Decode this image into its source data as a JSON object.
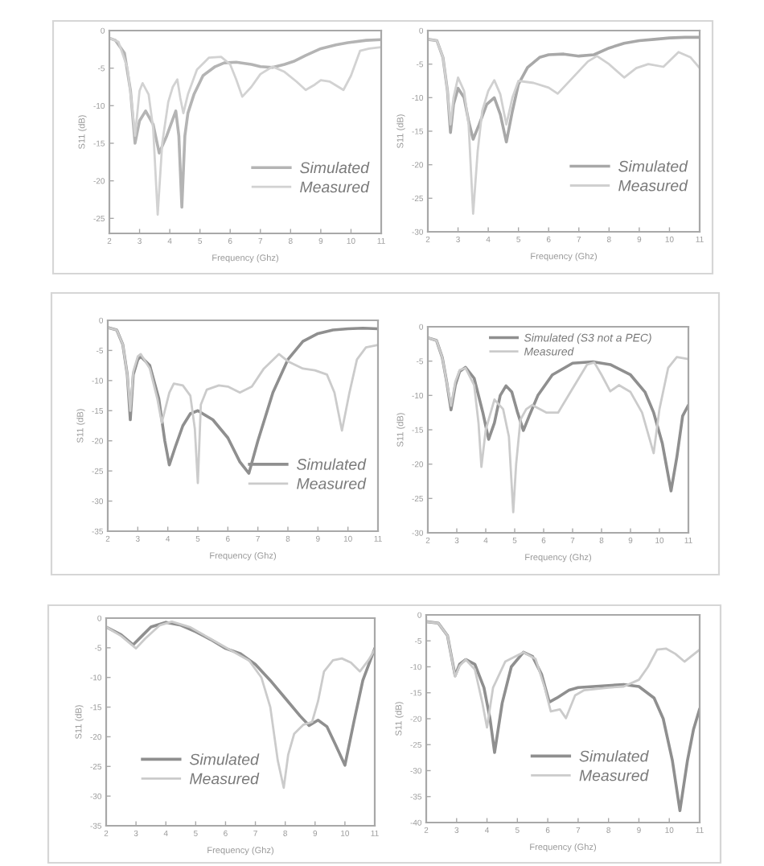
{
  "chart_data": [
    {
      "type": "line",
      "xlabel": "Frequency (Ghz)",
      "ylabel": "S11 (dB)",
      "xlim": [
        2,
        11
      ],
      "xticks": [
        2,
        3,
        4,
        5,
        6,
        7,
        8,
        9,
        10,
        11
      ],
      "ylim": [
        -27,
        0
      ],
      "yticks": [
        0,
        -5,
        -10,
        -15,
        -20,
        -25
      ],
      "legend": "lower right",
      "series": [
        {
          "name": "Simulated",
          "color": "#b4b4b4",
          "x": [
            2.0,
            2.2,
            2.5,
            2.7,
            2.85,
            3.0,
            3.2,
            3.45,
            3.65,
            3.9,
            4.2,
            4.3,
            4.4,
            4.5,
            4.6,
            4.8,
            5.1,
            5.5,
            5.8,
            6.2,
            6.7,
            7.0,
            7.4,
            7.8,
            8.1,
            8.5,
            9.0,
            9.5,
            9.9,
            10.5,
            11.0
          ],
          "values": [
            -1.0,
            -1.3,
            -3.0,
            -8.0,
            -15.0,
            -12.0,
            -10.7,
            -12.5,
            -16.3,
            -14.0,
            -10.7,
            -14.0,
            -23.5,
            -14.0,
            -11.0,
            -8.5,
            -6.0,
            -4.8,
            -4.3,
            -4.2,
            -4.5,
            -4.8,
            -4.9,
            -4.5,
            -4.1,
            -3.3,
            -2.4,
            -1.9,
            -1.6,
            -1.3,
            -1.2
          ]
        },
        {
          "name": "Measured",
          "color": "#d2d2d2",
          "x": [
            2.0,
            2.3,
            2.6,
            2.75,
            2.85,
            3.0,
            3.1,
            3.3,
            3.45,
            3.6,
            3.75,
            3.95,
            4.1,
            4.25,
            4.35,
            4.45,
            4.6,
            4.9,
            5.3,
            5.7,
            6.0,
            6.2,
            6.4,
            6.7,
            7.0,
            7.4,
            7.8,
            8.2,
            8.5,
            8.8,
            9.0,
            9.3,
            9.75,
            10.0,
            10.3,
            10.6,
            11.0
          ],
          "values": [
            -1.0,
            -1.5,
            -5.0,
            -10.0,
            -14.0,
            -8.0,
            -7.0,
            -8.5,
            -13.0,
            -24.5,
            -15.0,
            -9.5,
            -7.5,
            -6.5,
            -9.0,
            -11.0,
            -8.5,
            -5.2,
            -3.6,
            -3.5,
            -4.5,
            -6.5,
            -8.8,
            -7.5,
            -5.8,
            -4.8,
            -5.5,
            -6.8,
            -7.9,
            -7.2,
            -6.6,
            -6.8,
            -7.9,
            -6.0,
            -2.7,
            -2.4,
            -2.2
          ]
        }
      ]
    },
    {
      "type": "line",
      "xlabel": "Frequency (Ghz)",
      "ylabel": "S11 (dB)",
      "xlim": [
        2,
        11
      ],
      "xticks": [
        2,
        3,
        4,
        5,
        6,
        7,
        8,
        9,
        10,
        11
      ],
      "ylim": [
        -30,
        0
      ],
      "yticks": [
        0,
        -5,
        -10,
        -15,
        -20,
        -25,
        -30
      ],
      "legend": "lower right",
      "series": [
        {
          "name": "Simulated",
          "color": "#a8a8a8",
          "x": [
            2.0,
            2.3,
            2.5,
            2.65,
            2.75,
            2.85,
            3.0,
            3.2,
            3.35,
            3.5,
            3.7,
            3.95,
            4.2,
            4.4,
            4.6,
            4.8,
            5.0,
            5.3,
            5.7,
            6.0,
            6.5,
            7.0,
            7.5,
            8.0,
            8.5,
            9.0,
            9.5,
            10.0,
            10.5,
            11.0
          ],
          "values": [
            -1.3,
            -1.5,
            -4.0,
            -9.0,
            -15.2,
            -11.0,
            -8.6,
            -10.0,
            -13.5,
            -16.2,
            -14.0,
            -11.0,
            -10.0,
            -12.5,
            -16.6,
            -12.0,
            -8.0,
            -5.5,
            -4.0,
            -3.6,
            -3.5,
            -3.8,
            -3.6,
            -2.6,
            -1.9,
            -1.5,
            -1.3,
            -1.1,
            -1.0,
            -1.0
          ]
        },
        {
          "name": "Measured",
          "color": "#d0d0d0",
          "x": [
            2.0,
            2.3,
            2.5,
            2.65,
            2.75,
            2.85,
            3.0,
            3.2,
            3.35,
            3.5,
            3.65,
            3.8,
            4.0,
            4.2,
            4.4,
            4.6,
            4.8,
            5.0,
            5.5,
            6.0,
            6.3,
            6.8,
            7.3,
            7.6,
            8.0,
            8.5,
            8.9,
            9.3,
            9.8,
            10.3,
            10.7,
            11.0
          ],
          "values": [
            -1.3,
            -1.5,
            -4.0,
            -9.0,
            -14.0,
            -10.0,
            -7.0,
            -9.0,
            -14.0,
            -27.3,
            -18.0,
            -12.0,
            -9.0,
            -7.4,
            -9.5,
            -14.0,
            -10.0,
            -7.5,
            -7.8,
            -8.5,
            -9.4,
            -7.0,
            -4.6,
            -3.8,
            -5.0,
            -7.0,
            -5.6,
            -5.0,
            -5.4,
            -3.2,
            -4.0,
            -5.6
          ]
        }
      ]
    },
    {
      "type": "line",
      "xlabel": "Frequency (Ghz)",
      "ylabel": "S11 (dB)",
      "xlim": [
        2,
        11
      ],
      "xticks": [
        2,
        3,
        4,
        5,
        6,
        7,
        8,
        9,
        10,
        11
      ],
      "ylim": [
        -35,
        0
      ],
      "yticks": [
        0,
        -5,
        -10,
        -15,
        -20,
        -25,
        -30,
        -35
      ],
      "legend": "lower right",
      "series": [
        {
          "name": "Simulated",
          "color": "#8f8f8f",
          "x": [
            2.0,
            2.3,
            2.5,
            2.65,
            2.75,
            2.85,
            3.0,
            3.1,
            3.4,
            3.7,
            3.9,
            4.05,
            4.25,
            4.5,
            4.75,
            5.0,
            5.5,
            6.0,
            6.4,
            6.7,
            7.0,
            7.5,
            8.0,
            8.5,
            9.0,
            9.5,
            10.0,
            10.5,
            11.0
          ],
          "values": [
            -1.2,
            -1.6,
            -4.0,
            -9.0,
            -16.5,
            -9.0,
            -6.5,
            -6.0,
            -7.5,
            -13.0,
            -20.0,
            -24.0,
            -21.0,
            -17.5,
            -15.5,
            -15.0,
            -16.5,
            -19.5,
            -23.5,
            -25.4,
            -20.0,
            -12.0,
            -6.5,
            -3.5,
            -2.2,
            -1.6,
            -1.4,
            -1.3,
            -1.4
          ]
        },
        {
          "name": "Measured",
          "color": "#cbcbcb",
          "x": [
            2.0,
            2.3,
            2.5,
            2.65,
            2.75,
            2.85,
            3.0,
            3.1,
            3.4,
            3.65,
            3.8,
            3.9,
            4.05,
            4.2,
            4.5,
            4.75,
            4.9,
            5.0,
            5.1,
            5.3,
            5.7,
            6.0,
            6.4,
            6.8,
            7.2,
            7.7,
            8.0,
            8.5,
            8.9,
            9.3,
            9.55,
            9.8,
            10.05,
            10.3,
            10.6,
            11.0
          ],
          "values": [
            -1.2,
            -1.6,
            -4.0,
            -9.0,
            -15.0,
            -8.5,
            -6.0,
            -5.6,
            -8.0,
            -13.0,
            -17.0,
            -15.0,
            -12.0,
            -10.5,
            -10.8,
            -12.5,
            -18.0,
            -27.0,
            -14.0,
            -11.5,
            -10.8,
            -11.0,
            -12.0,
            -11.0,
            -8.0,
            -5.6,
            -6.8,
            -8.0,
            -8.3,
            -9.0,
            -12.0,
            -18.3,
            -12.0,
            -6.5,
            -4.5,
            -4.1
          ]
        }
      ]
    },
    {
      "type": "line",
      "xlabel": "Frequency (Ghz)",
      "ylabel": "S11 (dB)",
      "xlim": [
        2,
        11
      ],
      "xticks": [
        2,
        3,
        4,
        5,
        6,
        7,
        8,
        9,
        10,
        11
      ],
      "ylim": [
        -30,
        0
      ],
      "yticks": [
        0,
        -5,
        -10,
        -15,
        -20,
        -25,
        -30
      ],
      "legend": "top",
      "series": [
        {
          "name": "Simulated (S3 not a PEC)",
          "color": "#8f8f8f",
          "x": [
            2.0,
            2.3,
            2.5,
            2.65,
            2.8,
            2.95,
            3.1,
            3.3,
            3.6,
            3.9,
            4.1,
            4.3,
            4.5,
            4.7,
            4.9,
            5.1,
            5.3,
            5.5,
            5.8,
            6.3,
            7.0,
            7.7,
            8.3,
            9.0,
            9.5,
            9.8,
            10.1,
            10.4,
            10.6,
            10.8,
            11.0
          ],
          "values": [
            -1.6,
            -2.0,
            -4.5,
            -8.0,
            -12.1,
            -8.5,
            -6.5,
            -5.9,
            -7.5,
            -12.5,
            -16.4,
            -14.0,
            -10.0,
            -8.6,
            -9.5,
            -12.5,
            -15.1,
            -13.0,
            -10.0,
            -7.0,
            -5.3,
            -5.1,
            -5.5,
            -7.0,
            -9.5,
            -12.5,
            -17.0,
            -23.9,
            -19.0,
            -13.0,
            -11.4
          ]
        },
        {
          "name": "Measured",
          "color": "#cbcbcb",
          "x": [
            2.0,
            2.3,
            2.5,
            2.65,
            2.8,
            2.95,
            3.1,
            3.3,
            3.6,
            3.75,
            3.85,
            4.0,
            4.3,
            4.6,
            4.8,
            4.95,
            5.05,
            5.2,
            5.4,
            5.6,
            6.1,
            6.5,
            7.0,
            7.5,
            7.75,
            8.0,
            8.3,
            8.6,
            9.0,
            9.4,
            9.8,
            10.0,
            10.3,
            10.6,
            11.0
          ],
          "values": [
            -1.6,
            -2.0,
            -4.5,
            -8.0,
            -11.5,
            -8.0,
            -6.3,
            -6.0,
            -8.5,
            -14.0,
            -20.4,
            -15.0,
            -10.6,
            -12.0,
            -16.0,
            -27.0,
            -20.0,
            -13.5,
            -12.0,
            -11.4,
            -12.5,
            -12.5,
            -9.0,
            -5.5,
            -5.2,
            -7.0,
            -9.4,
            -8.5,
            -9.5,
            -12.5,
            -18.4,
            -12.0,
            -6.0,
            -4.4,
            -4.7
          ]
        }
      ]
    },
    {
      "type": "line",
      "xlabel": "Frequency (Ghz)",
      "ylabel": "S11 (dB)",
      "xlim": [
        2,
        11
      ],
      "xticks": [
        2,
        3,
        4,
        5,
        6,
        7,
        8,
        9,
        10,
        11
      ],
      "ylim": [
        -35,
        0
      ],
      "yticks": [
        0,
        -5,
        -10,
        -15,
        -20,
        -25,
        -30,
        -35
      ],
      "legend": "lower left",
      "series": [
        {
          "name": "Simulated",
          "color": "#8f8f8f",
          "x": [
            2.0,
            2.5,
            2.9,
            3.2,
            3.5,
            4.0,
            4.5,
            5.0,
            5.5,
            6.0,
            6.5,
            7.0,
            7.5,
            8.0,
            8.5,
            8.8,
            9.1,
            9.4,
            9.7,
            10.0,
            10.3,
            10.6,
            11.0
          ],
          "values": [
            -1.5,
            -2.8,
            -4.5,
            -3.0,
            -1.5,
            -0.7,
            -1.2,
            -2.3,
            -3.6,
            -5.1,
            -6.0,
            -7.8,
            -10.5,
            -13.5,
            -16.5,
            -18.1,
            -17.2,
            -18.3,
            -21.5,
            -24.8,
            -17.5,
            -10.5,
            -5.1
          ]
        },
        {
          "name": "Measured",
          "color": "#cbcbcb",
          "x": [
            2.0,
            2.5,
            3.0,
            3.3,
            3.8,
            4.2,
            4.8,
            5.5,
            6.2,
            6.8,
            7.2,
            7.5,
            7.75,
            7.95,
            8.1,
            8.3,
            8.6,
            8.9,
            9.1,
            9.3,
            9.6,
            9.9,
            10.2,
            10.5,
            10.8,
            11.0
          ],
          "values": [
            -1.5,
            -3.0,
            -5.1,
            -3.5,
            -1.2,
            -0.6,
            -1.5,
            -3.5,
            -5.5,
            -7.2,
            -10.0,
            -15.0,
            -24.0,
            -28.6,
            -23.0,
            -19.5,
            -18.0,
            -17.5,
            -14.0,
            -9.0,
            -7.1,
            -6.8,
            -7.5,
            -9.0,
            -7.0,
            -5.3
          ]
        }
      ]
    },
    {
      "type": "line",
      "xlabel": "Frequency (Ghz)",
      "ylabel": "S11 (dB)",
      "xlim": [
        2,
        11
      ],
      "xticks": [
        2,
        3,
        4,
        5,
        6,
        7,
        8,
        9,
        10,
        11
      ],
      "ylim": [
        -40,
        0
      ],
      "yticks": [
        0,
        -5,
        -10,
        -15,
        -20,
        -25,
        -30,
        -35,
        -40
      ],
      "legend": "bottom",
      "series": [
        {
          "name": "Simulated",
          "color": "#8f8f8f",
          "x": [
            2.0,
            2.4,
            2.7,
            2.95,
            3.1,
            3.3,
            3.6,
            3.9,
            4.1,
            4.25,
            4.5,
            4.8,
            5.2,
            5.5,
            5.8,
            6.05,
            6.3,
            6.7,
            7.0,
            7.5,
            8.0,
            8.5,
            9.0,
            9.5,
            9.8,
            10.1,
            10.35,
            10.6,
            10.8,
            11.0
          ],
          "values": [
            -1.3,
            -1.6,
            -4.0,
            -11.7,
            -9.5,
            -8.6,
            -9.5,
            -14.0,
            -20.0,
            -26.5,
            -17.0,
            -10.0,
            -7.2,
            -8.0,
            -11.5,
            -16.8,
            -16.0,
            -14.5,
            -14.0,
            -13.8,
            -13.6,
            -13.4,
            -13.8,
            -16.0,
            -20.0,
            -28.0,
            -37.7,
            -28.0,
            -22.0,
            -18.1
          ]
        },
        {
          "name": "Measured",
          "color": "#cbcbcb",
          "x": [
            2.0,
            2.4,
            2.7,
            2.95,
            3.1,
            3.3,
            3.6,
            3.85,
            4.0,
            4.2,
            4.6,
            5.2,
            5.6,
            5.9,
            6.1,
            6.4,
            6.6,
            6.9,
            7.2,
            8.0,
            8.5,
            9.0,
            9.3,
            9.6,
            9.9,
            10.2,
            10.5,
            11.0
          ],
          "values": [
            -1.3,
            -1.6,
            -4.0,
            -11.9,
            -9.8,
            -8.6,
            -10.5,
            -17.0,
            -21.7,
            -14.0,
            -9.0,
            -7.2,
            -8.5,
            -14.0,
            -18.6,
            -18.2,
            -19.9,
            -15.5,
            -14.5,
            -14.0,
            -13.8,
            -12.5,
            -10.0,
            -6.7,
            -6.5,
            -7.5,
            -9.0,
            -6.7
          ]
        }
      ]
    }
  ]
}
